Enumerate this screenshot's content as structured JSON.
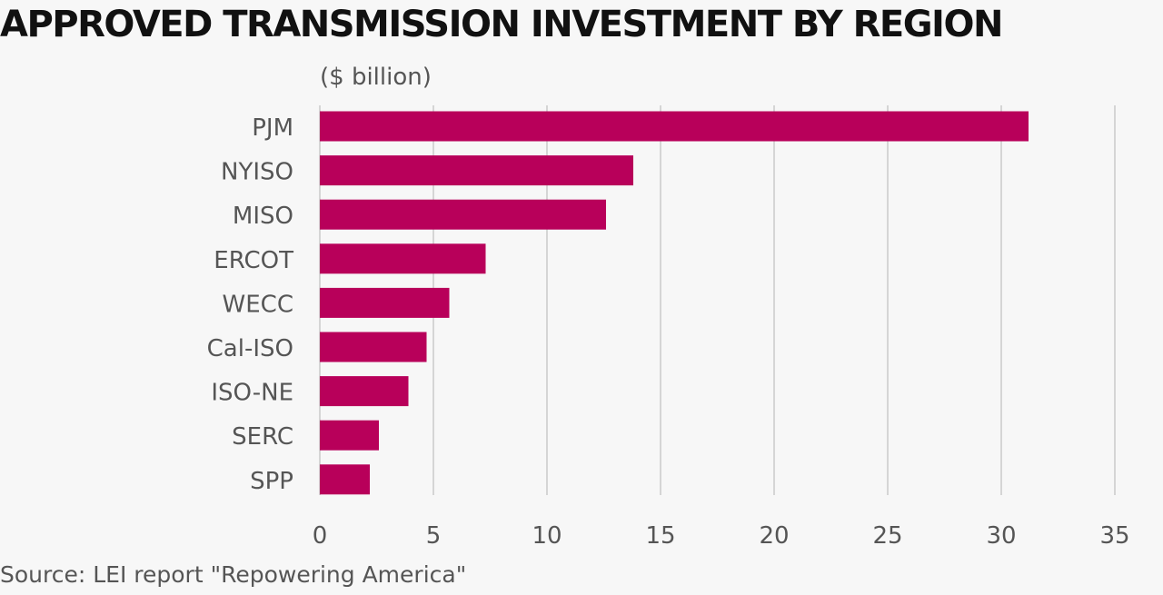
{
  "title": "APPROVED TRANSMISSION INVESTMENT BY REGION",
  "unit_label": "($ billion)",
  "source": "Source: LEI report \"Repowering America\"",
  "chart_data": {
    "type": "bar",
    "orientation": "horizontal",
    "title": "APPROVED TRANSMISSION INVESTMENT BY REGION",
    "ylabel": "($ billion)",
    "categories": [
      "PJM",
      "NYISO",
      "MISO",
      "ERCOT",
      "WECC",
      "Cal-ISO",
      "ISO-NE",
      "SERC",
      "SPP"
    ],
    "values": [
      31.2,
      13.8,
      12.6,
      7.3,
      5.7,
      4.7,
      3.9,
      2.6,
      2.2
    ],
    "xlim": [
      0,
      35
    ],
    "x_ticks": [
      0,
      5,
      10,
      15,
      20,
      25,
      30,
      35
    ],
    "grid": true,
    "legend": "none",
    "bar_color": "#b8005a",
    "gridline_color": "#d5d5d5"
  }
}
